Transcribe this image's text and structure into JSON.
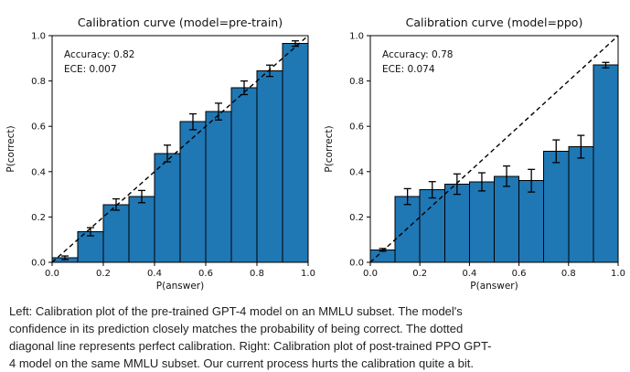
{
  "figure": {
    "background": "#ffffff"
  },
  "caption": {
    "lines": [
      "Left: Calibration plot of the pre-trained GPT-4 model on an MMLU subset. The model's",
      "confidence in its prediction closely matches the probability of being correct. The dotted",
      "diagonal line represents perfect calibration. Right: Calibration plot of post-trained PPO GPT-",
      "4 model on the same MMLU subset. Our current process hurts the calibration quite a bit."
    ]
  },
  "chart_data": [
    {
      "type": "bar",
      "title": "Calibration curve (model=pre-train)",
      "xlabel": "P(answer)",
      "ylabel": "P(correct)",
      "xlim": [
        0.0,
        1.0
      ],
      "ylim": [
        0.0,
        1.0
      ],
      "xticks": [
        0.0,
        0.2,
        0.4,
        0.6,
        0.8,
        1.0
      ],
      "yticks": [
        0.0,
        0.2,
        0.4,
        0.6,
        0.8,
        1.0
      ],
      "grid": false,
      "legend": "none",
      "accuracy": 0.82,
      "ece": 0.007,
      "annotation_lines": [
        "Accuracy: 0.82",
        "ECE: 0.007"
      ],
      "bin_edges": [
        0.0,
        0.1,
        0.2,
        0.3,
        0.4,
        0.5,
        0.6,
        0.7,
        0.8,
        0.9,
        1.0
      ],
      "values": [
        0.02,
        0.135,
        0.255,
        0.29,
        0.48,
        0.62,
        0.665,
        0.77,
        0.845,
        0.965
      ],
      "errors": [
        0.008,
        0.018,
        0.025,
        0.027,
        0.037,
        0.035,
        0.037,
        0.03,
        0.025,
        0.012
      ],
      "bar_color": "#1f77b4",
      "bar_edge_color": "#000000",
      "diagonal_line": {
        "from": [
          0,
          0
        ],
        "to": [
          1,
          1
        ],
        "style": "dashed",
        "color": "#000000"
      }
    },
    {
      "type": "bar",
      "title": "Calibration curve (model=ppo)",
      "xlabel": "P(answer)",
      "ylabel": "P(correct)",
      "xlim": [
        0.0,
        1.0
      ],
      "ylim": [
        0.0,
        1.0
      ],
      "xticks": [
        0.0,
        0.2,
        0.4,
        0.6,
        0.8,
        1.0
      ],
      "yticks": [
        0.0,
        0.2,
        0.4,
        0.6,
        0.8,
        1.0
      ],
      "grid": false,
      "legend": "none",
      "accuracy": 0.78,
      "ece": 0.074,
      "annotation_lines": [
        "Accuracy: 0.78",
        "ECE: 0.074"
      ],
      "bin_edges": [
        0.0,
        0.1,
        0.2,
        0.3,
        0.4,
        0.5,
        0.6,
        0.7,
        0.8,
        0.9,
        1.0
      ],
      "values": [
        0.055,
        0.29,
        0.32,
        0.345,
        0.355,
        0.38,
        0.36,
        0.49,
        0.51,
        0.87
      ],
      "errors": [
        0.006,
        0.035,
        0.036,
        0.045,
        0.04,
        0.045,
        0.05,
        0.05,
        0.05,
        0.012
      ],
      "bar_color": "#1f77b4",
      "bar_edge_color": "#000000",
      "diagonal_line": {
        "from": [
          0,
          0
        ],
        "to": [
          1,
          1
        ],
        "style": "dashed",
        "color": "#000000"
      }
    }
  ]
}
